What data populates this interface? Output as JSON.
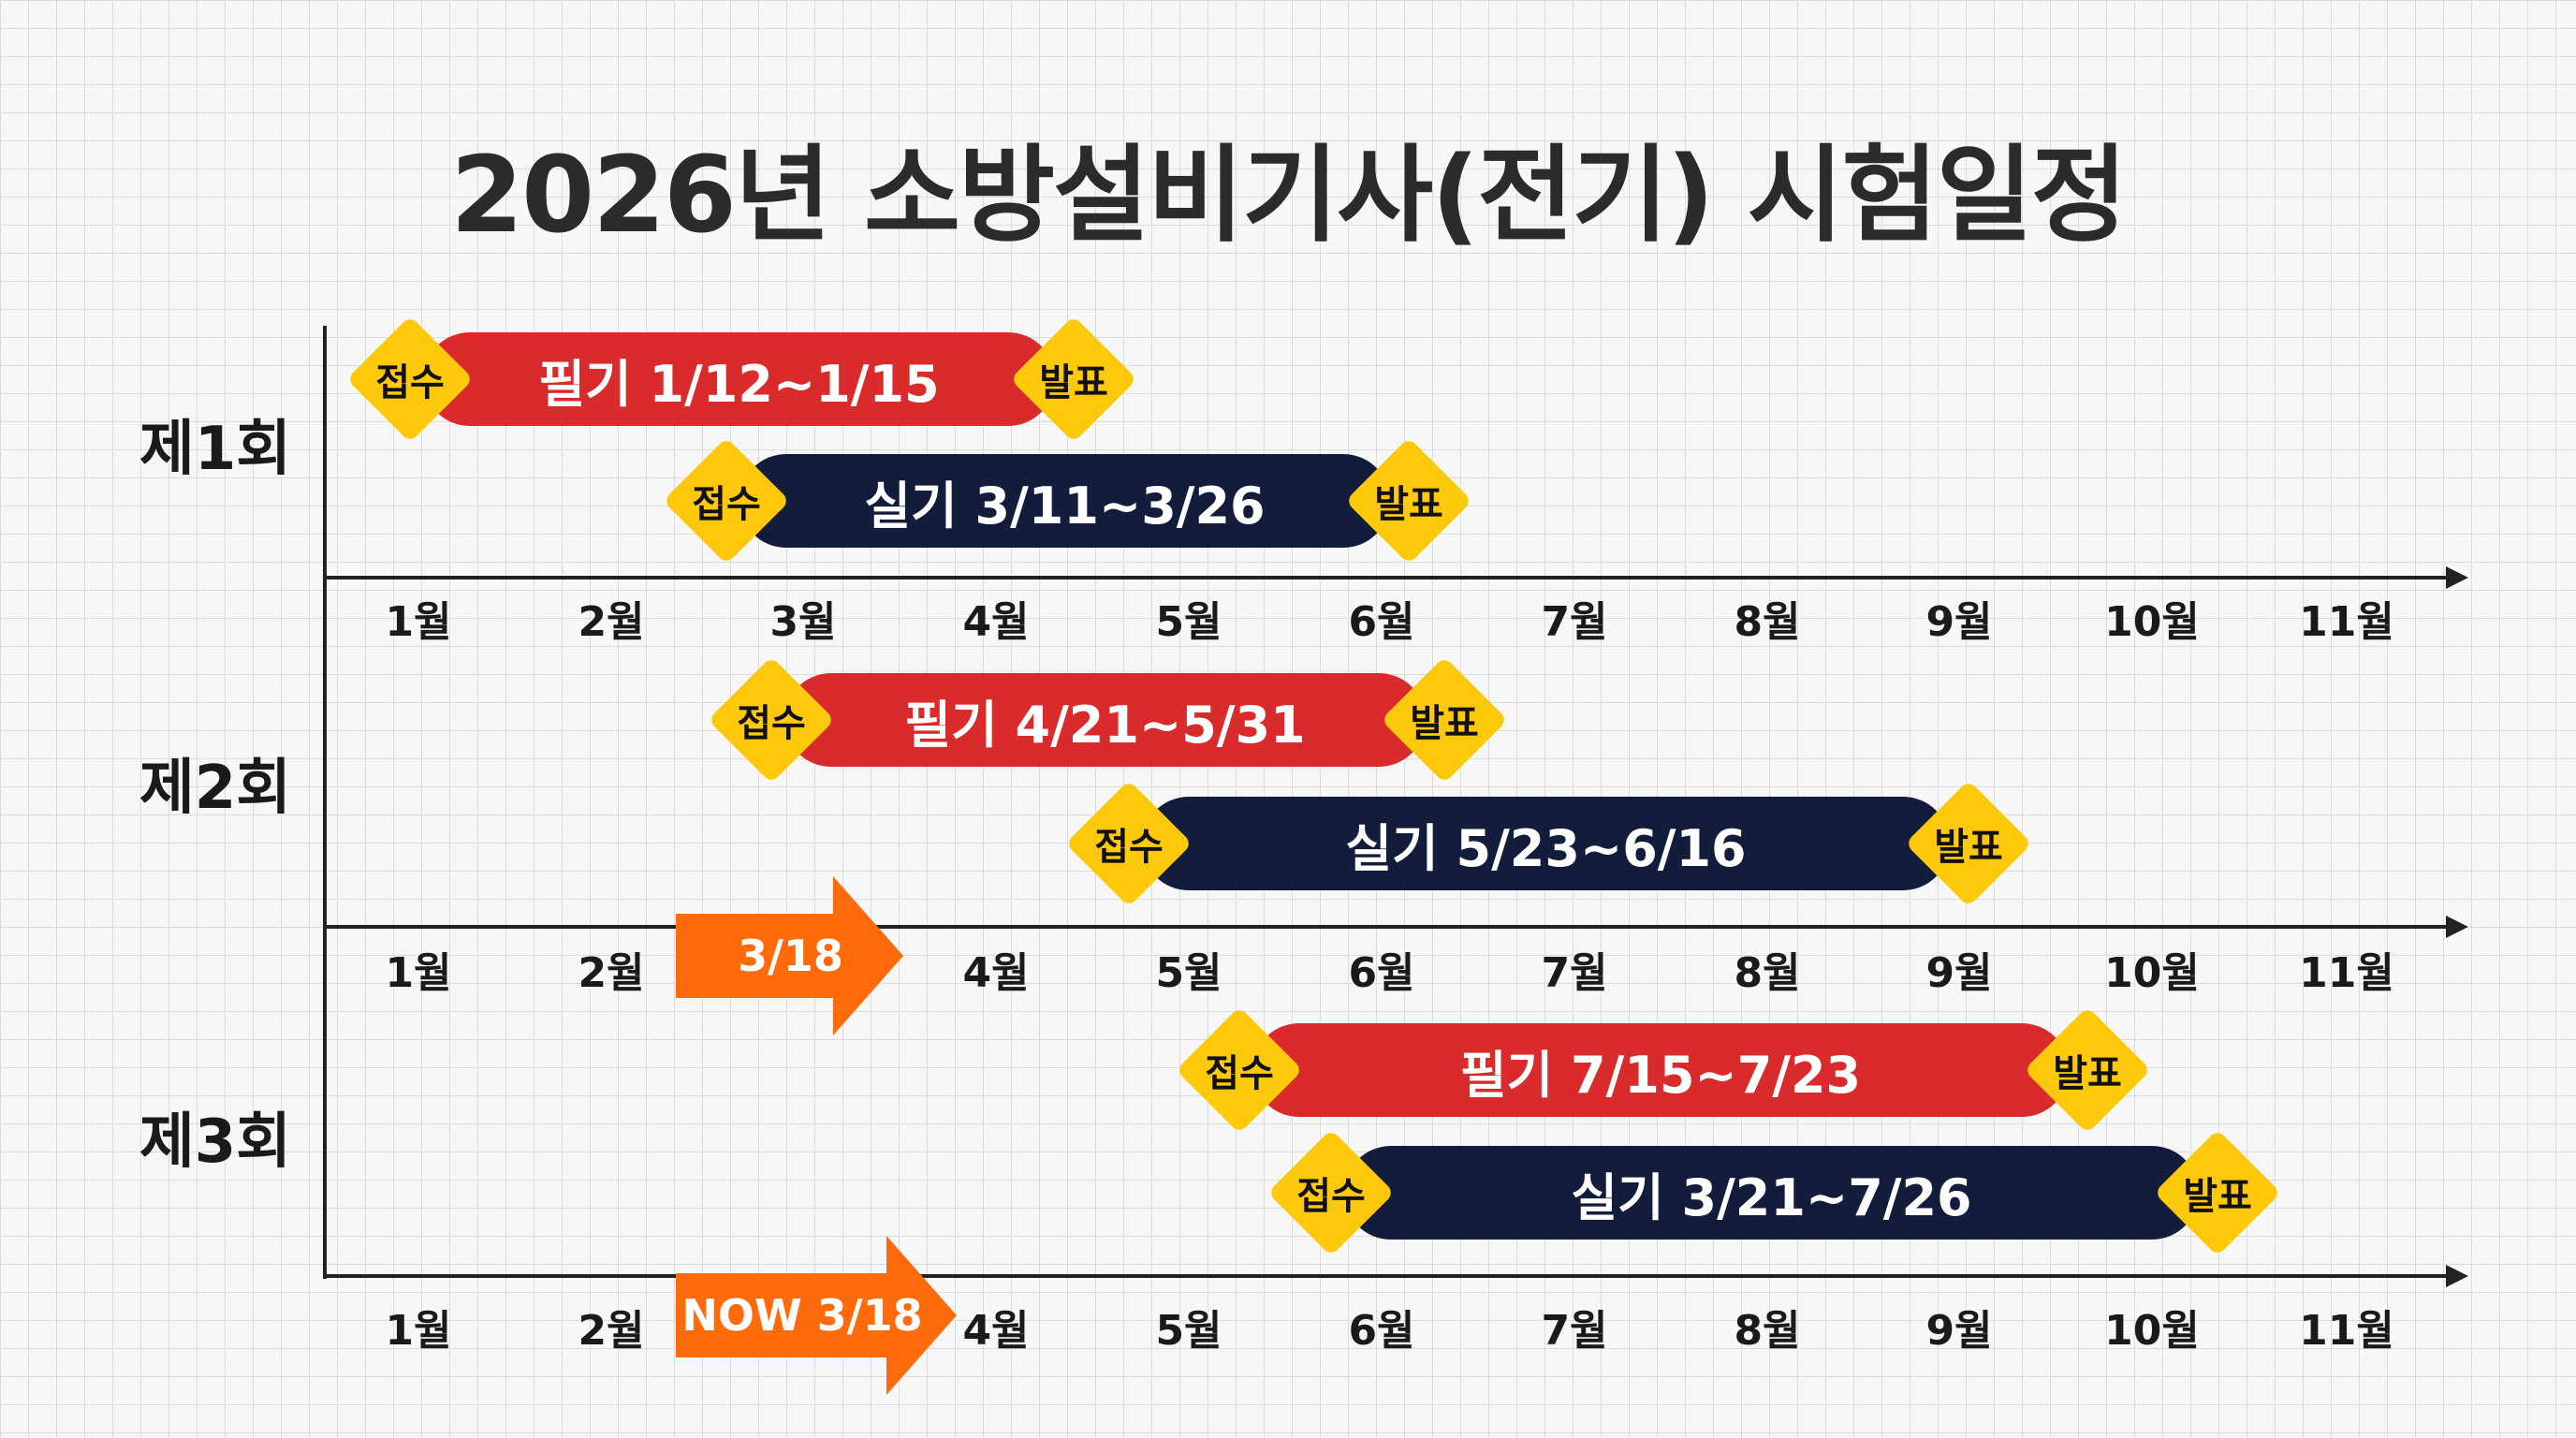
{
  "title": "2026년 소방설비기사(전기) 시험일정",
  "rounds": [
    "제1회",
    "제2회",
    "제3회"
  ],
  "months": {
    "row1": [
      "1월",
      "2월",
      "3월",
      "4월",
      "5월",
      "6월",
      "7월",
      "8월",
      "9월",
      "10월",
      "11월"
    ],
    "row2": [
      "1월",
      "2월",
      "4월",
      "5월",
      "6월",
      "7월",
      "8월",
      "9월",
      "10월",
      "11월"
    ],
    "row3": [
      "1월",
      "2월",
      "4월",
      "5월",
      "6월",
      "7월",
      "8월",
      "9월",
      "10월",
      "11월"
    ]
  },
  "markers": {
    "start": "접수",
    "end": "발표"
  },
  "bars": [
    {
      "round": "제1회",
      "kind": "필기",
      "label": "필기 1/12~1/15",
      "color": "#d92b2b"
    },
    {
      "round": "제1회",
      "kind": "실기",
      "label": "실기 3/11~3/26",
      "color": "#141c3b"
    },
    {
      "round": "제2회",
      "kind": "필기",
      "label": "필기 4/21~5/31",
      "color": "#d92b2b"
    },
    {
      "round": "제2회",
      "kind": "실기",
      "label": "실기 5/23~6/16",
      "color": "#141c3b"
    },
    {
      "round": "제3회",
      "kind": "필기",
      "label": "필기 7/15~7/23",
      "color": "#d92b2b"
    },
    {
      "round": "제3회",
      "kind": "실기",
      "label": "실기 3/21~7/26",
      "color": "#141c3b"
    }
  ],
  "arrows": [
    "3/18",
    "NOW 3/18"
  ],
  "colors": {
    "accent": "#ff6b0a",
    "marker": "#ffc90b",
    "written": "#d92b2b",
    "practical": "#141c3b"
  }
}
